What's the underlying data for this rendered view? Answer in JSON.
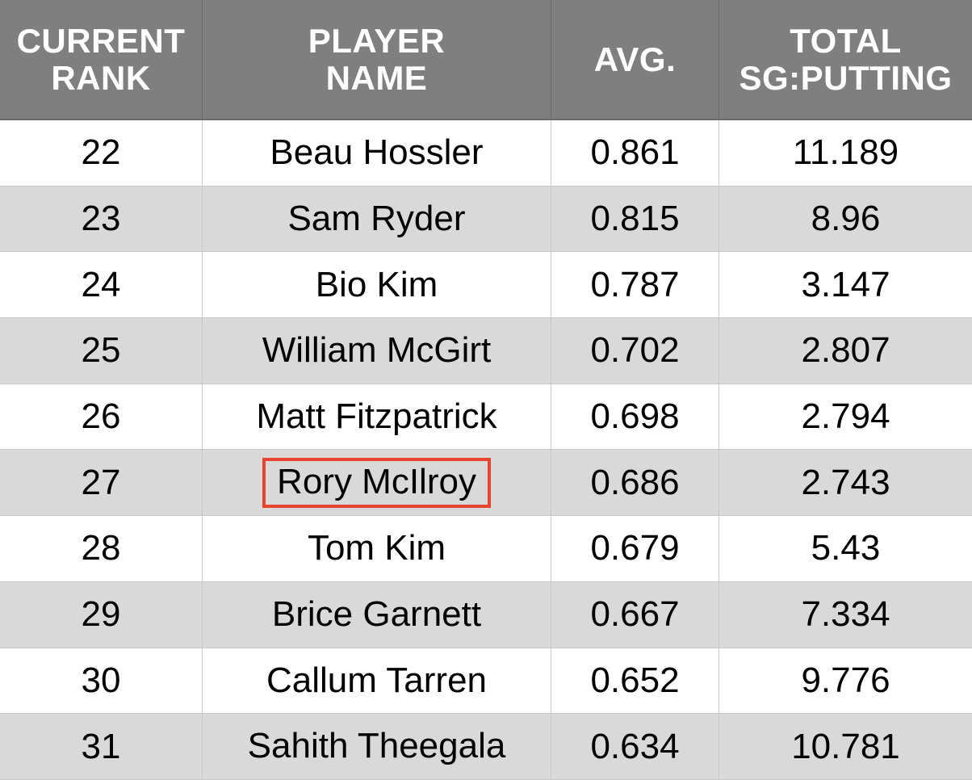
{
  "table": {
    "headers": [
      {
        "line1": "CURRENT",
        "line2": "RANK"
      },
      {
        "line1": "PLAYER",
        "line2": "NAME"
      },
      {
        "line1": "AVG.",
        "line2": ""
      },
      {
        "line1": "TOTAL",
        "line2": "SG:PUTTING"
      }
    ],
    "rows": [
      {
        "rank": "22",
        "name": "Beau Hossler",
        "avg": "0.861",
        "total": "11.189"
      },
      {
        "rank": "23",
        "name": "Sam Ryder",
        "avg": "0.815",
        "total": "8.96"
      },
      {
        "rank": "24",
        "name": "Bio Kim",
        "avg": "0.787",
        "total": "3.147"
      },
      {
        "rank": "25",
        "name": "William McGirt",
        "avg": "0.702",
        "total": "2.807"
      },
      {
        "rank": "26",
        "name": "Matt Fitzpatrick",
        "avg": "0.698",
        "total": "2.794"
      },
      {
        "rank": "27",
        "name": "Rory McIlroy",
        "avg": "0.686",
        "total": "2.743"
      },
      {
        "rank": "28",
        "name": "Tom Kim",
        "avg": "0.679",
        "total": "5.43"
      },
      {
        "rank": "29",
        "name": "Brice Garnett",
        "avg": "0.667",
        "total": "7.334"
      },
      {
        "rank": "30",
        "name": "Callum Tarren",
        "avg": "0.652",
        "total": "9.776"
      },
      {
        "rank": "31",
        "name": "Sahith Theegala",
        "avg": "0.634",
        "total": "10.781"
      }
    ]
  },
  "colors": {
    "header_bg": "#7f7f7f",
    "header_text": "#ffffff",
    "row_alt_bg": "#d9d9d9",
    "highlight_border": "#e8432d"
  },
  "highlighted_row_rank": "27"
}
